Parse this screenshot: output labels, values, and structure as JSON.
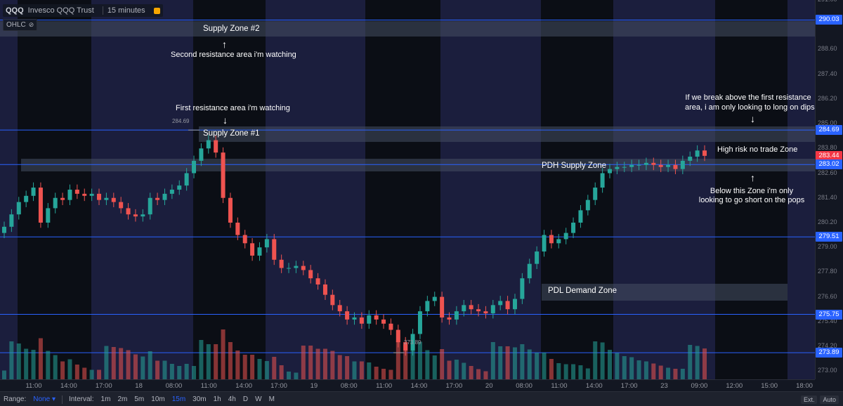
{
  "header": {
    "symbol": "QQQ",
    "description": "Invesco QQQ Trust",
    "interval": "15 minutes",
    "ohlc_label": "OHLC"
  },
  "chart_data": {
    "type": "candlestick",
    "title": "",
    "ylim": [
      272.6,
      291.0
    ],
    "y_ticks": [
      "291.00",
      "289.90",
      "288.60",
      "287.40",
      "286.20",
      "285.00",
      "283.80",
      "282.60",
      "281.40",
      "280.20",
      "279.00",
      "277.80",
      "276.60",
      "275.40",
      "274.20",
      "273.00"
    ],
    "x_ticks": [
      "11:00",
      "14:00",
      "17:00",
      "18",
      "08:00",
      "11:00",
      "14:00",
      "17:00",
      "19",
      "08:00",
      "11:00",
      "14:00",
      "17:00",
      "20",
      "08:00",
      "11:00",
      "14:00",
      "17:00",
      "23",
      "09:00",
      "12:00",
      "15:00",
      "18:00"
    ],
    "price_lines": [
      {
        "label": "290.03",
        "value": 290.03,
        "color": "#2962ff"
      },
      {
        "label": "284.69",
        "value": 284.69,
        "color": "#2962ff"
      },
      {
        "label": "283.44",
        "value": 283.44,
        "color": "#f23645"
      },
      {
        "label": "283.02",
        "value": 283.02,
        "color": "#2962ff"
      },
      {
        "label": "279.51",
        "value": 279.51,
        "color": "#2962ff"
      },
      {
        "label": "275.75",
        "value": 275.75,
        "color": "#2962ff"
      },
      {
        "label": "273.89",
        "value": 273.89,
        "color": "#2962ff"
      }
    ],
    "zones": [
      {
        "label": "Supply Zone #2",
        "top": 290.0,
        "bottom": 289.2
      },
      {
        "label": "Supply Zone #1",
        "top": 284.69,
        "bottom": 283.9
      },
      {
        "label": "PDH Supply Zone",
        "top": 283.0,
        "bottom": 282.5
      },
      {
        "label": "PDL Demand Zone",
        "top": 276.6,
        "bottom": 275.8
      }
    ],
    "markers": [
      {
        "label": "284.69",
        "value": 284.69
      },
      {
        "label": "273.89",
        "value": 273.89
      }
    ],
    "close_series": [
      280.0,
      280.6,
      281.2,
      281.5,
      281.9,
      280.2,
      280.9,
      281.4,
      281.3,
      281.8,
      281.6,
      281.5,
      281.6,
      281.3,
      281.4,
      281.2,
      280.9,
      280.6,
      280.5,
      280.6,
      281.4,
      281.3,
      281.6,
      281.8,
      282.0,
      282.6,
      283.2,
      283.8,
      284.2,
      283.6,
      281.4,
      280.2,
      279.6,
      279.2,
      278.6,
      279.0,
      279.4,
      278.4,
      278.0,
      278.0,
      278.1,
      277.9,
      277.5,
      277.2,
      276.7,
      276.2,
      275.9,
      275.5,
      275.6,
      275.3,
      275.7,
      275.5,
      275.3,
      275.0,
      274.4,
      274.0,
      274.8,
      275.9,
      276.4,
      276.6,
      275.6,
      275.5,
      275.9,
      276.2,
      276.0,
      275.9,
      275.8,
      276.2,
      276.4,
      276.0,
      276.5,
      277.5,
      278.2,
      278.8,
      279.6,
      279.2,
      279.4,
      279.7,
      280.2,
      280.8,
      281.3,
      281.9,
      282.6,
      282.8,
      282.9,
      282.9,
      283.0,
      283.0,
      283.1,
      283.0,
      282.9,
      283.0,
      282.8,
      283.2,
      283.4,
      283.7,
      283.44
    ]
  },
  "annotations": {
    "zone2_label": "Supply Zone #2",
    "zone2_note": "Second resistance area i'm watching",
    "zone1_note": "First resistance area i'm watching",
    "zone1_label": "Supply Zone #1",
    "pdh_label": "PDH Supply Zone",
    "pdl_label": "PDL Demand Zone",
    "right_top_note_1": "If we break above the first resistance",
    "right_top_note_2": "area, i am only looking to long on dips",
    "high_risk": "High risk no trade Zone",
    "below_note_1": "Below this Zone i'm only",
    "below_note_2": "looking to go short on the pops",
    "high_marker": "284.69",
    "low_marker": "273.89"
  },
  "bottombar": {
    "range_label": "Range:",
    "range_value": "None",
    "interval_label": "Interval:",
    "intervals": [
      "1m",
      "2m",
      "5m",
      "10m",
      "15m",
      "30m",
      "1h",
      "4h",
      "D",
      "W",
      "M"
    ],
    "active_interval": "15m",
    "ext_label": "Ext.",
    "auto_label": "Auto"
  },
  "colors": {
    "up": "#26a69a",
    "down": "#ef5350",
    "price_line": "#2962ff",
    "last_price": "#f23645"
  }
}
